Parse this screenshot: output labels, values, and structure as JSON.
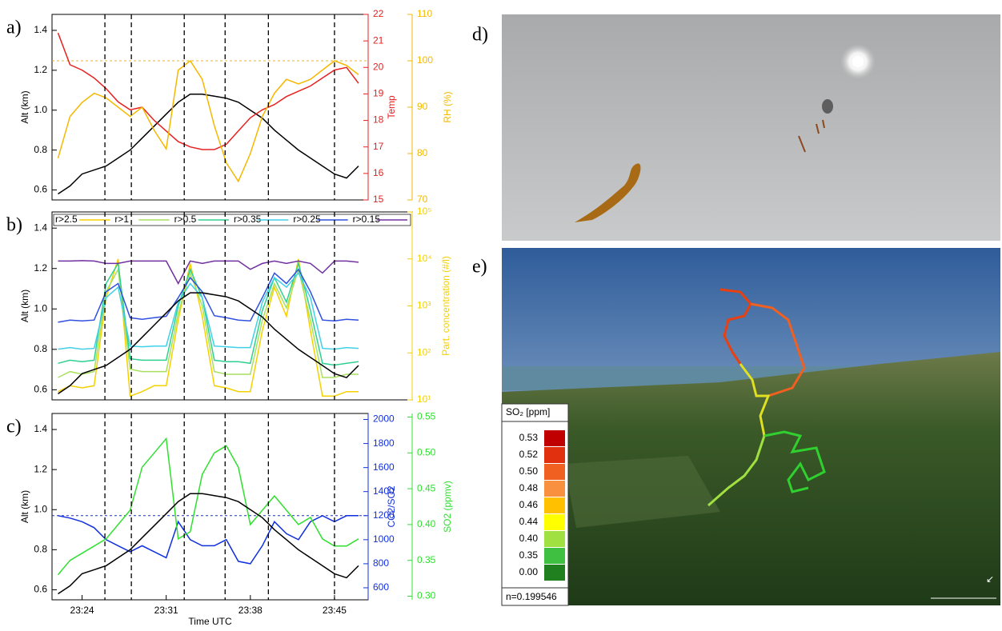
{
  "chart_data": [
    {
      "type": "line",
      "label": "a)",
      "ylabel": "Alt (km)",
      "y2label": "Temp",
      "y3label": "RH (%)",
      "xlim": [
        21.5,
        47.8
      ],
      "ylim": [
        0.55,
        1.48
      ],
      "yticks": [
        0.6,
        0.8,
        {
          "value": 1,
          "label": "1.0"
        },
        1.2,
        1.4
      ],
      "y2lim": [
        15,
        22
      ],
      "y2ticks": [
        15,
        16,
        17,
        18,
        19,
        20,
        21,
        22
      ],
      "y3lim": [
        70,
        110
      ],
      "y3ticks": [
        70,
        80,
        90,
        100,
        110
      ],
      "reference_line": {
        "axis": "y3",
        "value": 100
      },
      "x": [
        22,
        23,
        24,
        25,
        26,
        27,
        28,
        29,
        30,
        31,
        32,
        33,
        34,
        35,
        36,
        37,
        38,
        39,
        40,
        41,
        42,
        43,
        44,
        45,
        46,
        47
      ],
      "series": [
        {
          "axis": "y",
          "color": "#000000",
          "values": [
            0.58,
            0.62,
            0.68,
            0.7,
            0.72,
            0.76,
            0.8,
            0.86,
            0.92,
            0.98,
            1.04,
            1.08,
            1.08,
            1.07,
            1.06,
            1.04,
            1.0,
            0.96,
            0.9,
            0.85,
            0.8,
            0.76,
            0.72,
            0.68,
            0.66,
            0.72
          ]
        },
        {
          "axis": "y2",
          "color": "#e82020",
          "values": [
            21.3,
            20.1,
            19.9,
            19.6,
            19.2,
            18.7,
            18.4,
            18.5,
            18.0,
            17.6,
            17.2,
            17.0,
            16.9,
            16.9,
            17.1,
            17.6,
            18.1,
            18.4,
            18.6,
            18.9,
            19.1,
            19.3,
            19.6,
            19.9,
            20.0,
            19.4
          ]
        },
        {
          "axis": "y3",
          "color": "#f5b800",
          "values": [
            79,
            88,
            91,
            93,
            92,
            90,
            88,
            90,
            85,
            81,
            98,
            100,
            96,
            86,
            78,
            74,
            80,
            88,
            93,
            96,
            95,
            96,
            98,
            100,
            99,
            97
          ]
        }
      ]
    },
    {
      "type": "line",
      "label": "b)",
      "ylabel": "Alt (km)",
      "y2label": "Part. concentration (#/l)",
      "xlim": [
        21.5,
        47.8
      ],
      "ylim": [
        0.55,
        1.48
      ],
      "yticks": [
        0.6,
        0.8,
        {
          "value": 1,
          "label": "1.0"
        },
        1.2,
        1.4
      ],
      "y2lim": [
        10,
        100000
      ],
      "y2log": true,
      "y2ticks": [
        {
          "value": 10,
          "label": "10¹"
        },
        {
          "value": 100,
          "label": "10²"
        },
        {
          "value": 1000,
          "label": "10³"
        },
        {
          "value": 10000,
          "label": "10⁴"
        },
        {
          "value": 100000,
          "label": "10⁵"
        }
      ],
      "x": [
        22,
        23,
        24,
        25,
        26,
        27,
        28,
        29,
        30,
        31,
        32,
        33,
        34,
        35,
        36,
        37,
        38,
        39,
        40,
        41,
        42,
        43,
        44,
        45,
        46,
        47
      ],
      "series": [
        {
          "name": "r>2.5",
          "axis": "y2",
          "color": "#f5d000",
          "values": [
            15,
            20,
            18,
            20,
            1500,
            10000,
            12,
            15,
            20,
            20,
            500,
            8000,
            600,
            20,
            18,
            15,
            15,
            300,
            2500,
            600,
            10000,
            300,
            12,
            12,
            15,
            15
          ]
        },
        {
          "name": "r>1",
          "axis": "y2",
          "color": "#a8e060",
          "values": [
            30,
            40,
            35,
            40,
            2000,
            6000,
            45,
            40,
            40,
            40,
            700,
            5000,
            1000,
            40,
            35,
            35,
            35,
            500,
            3000,
            900,
            6000,
            500,
            30,
            30,
            35,
            35
          ]
        },
        {
          "name": "r>0.5",
          "axis": "y2",
          "color": "#30d090",
          "values": [
            60,
            70,
            65,
            70,
            3000,
            8000,
            75,
            70,
            70,
            70,
            1000,
            6000,
            1500,
            70,
            65,
            65,
            60,
            800,
            4000,
            1200,
            8000,
            800,
            60,
            55,
            60,
            65
          ]
        },
        {
          "name": "r>0.35",
          "axis": "y2",
          "color": "#40d0e8",
          "values": [
            120,
            130,
            120,
            125,
            1500,
            2500,
            140,
            135,
            140,
            140,
            1200,
            3000,
            1500,
            140,
            135,
            130,
            130,
            1200,
            4000,
            2500,
            5000,
            1500,
            125,
            120,
            130,
            125
          ]
        },
        {
          "name": "r>0.25",
          "axis": "y2",
          "color": "#3050e0",
          "values": [
            450,
            500,
            480,
            500,
            2000,
            3000,
            560,
            520,
            560,
            600,
            1500,
            4000,
            2000,
            620,
            560,
            500,
            480,
            1500,
            5000,
            3000,
            6000,
            2000,
            500,
            480,
            520,
            500
          ]
        },
        {
          "name": "r>0.15",
          "axis": "y2",
          "color": "#7030a0",
          "values": [
            9000,
            9000,
            9200,
            9000,
            8000,
            8000,
            9000,
            9000,
            9000,
            9000,
            3000,
            9000,
            8000,
            9000,
            9000,
            9000,
            6000,
            8000,
            9000,
            8000,
            9000,
            8000,
            5000,
            9000,
            9000,
            8500
          ]
        },
        {
          "axis": "y",
          "color": "#000000",
          "values": [
            0.58,
            0.62,
            0.68,
            0.7,
            0.72,
            0.76,
            0.8,
            0.86,
            0.92,
            0.98,
            1.04,
            1.08,
            1.08,
            1.07,
            1.06,
            1.04,
            1.0,
            0.96,
            0.9,
            0.85,
            0.8,
            0.76,
            0.72,
            0.68,
            0.66,
            0.72
          ]
        }
      ]
    },
    {
      "type": "line",
      "label": "c)",
      "ylabel": "Alt (km)",
      "y2label": "CO2/SO2",
      "y3label": "SO2 (ppmv)",
      "xlabel": "Time UTC",
      "xlim": [
        21.5,
        47.8
      ],
      "xticks": [
        {
          "value": 24,
          "label": "23:24"
        },
        {
          "value": 31,
          "label": "23:31"
        },
        {
          "value": 38,
          "label": "23:38"
        },
        {
          "value": 45,
          "label": "23:45"
        }
      ],
      "ylim": [
        0.55,
        1.48
      ],
      "yticks": [
        0.6,
        0.8,
        {
          "value": 1,
          "label": "1.0"
        },
        1.2,
        1.4
      ],
      "y2lim": [
        500,
        2050
      ],
      "y2ticks": [
        600,
        800,
        1000,
        1200,
        1400,
        1600,
        1800,
        2000
      ],
      "y3lim": [
        0.295,
        0.555
      ],
      "y3ticks": [
        {
          "value": 0.3,
          "label": "0.30"
        },
        0.35,
        {
          "value": 0.4,
          "label": "0.40"
        },
        0.45,
        {
          "value": 0.5,
          "label": "0.50"
        },
        0.55
      ],
      "reference_line": {
        "axis": "y2",
        "value": 1200
      },
      "x": [
        22,
        23,
        24,
        25,
        26,
        27,
        28,
        29,
        30,
        31,
        32,
        33,
        34,
        35,
        36,
        37,
        38,
        39,
        40,
        41,
        42,
        43,
        44,
        45,
        46,
        47
      ],
      "series": [
        {
          "axis": "y2",
          "color": "#1030e0",
          "values": [
            1200,
            1180,
            1150,
            1100,
            1000,
            950,
            900,
            950,
            900,
            850,
            1150,
            1000,
            950,
            950,
            1000,
            820,
            800,
            950,
            1150,
            1050,
            1000,
            1150,
            1200,
            1150,
            1200,
            1200
          ]
        },
        {
          "axis": "y3",
          "color": "#30e030",
          "values": [
            0.33,
            0.35,
            0.36,
            0.37,
            0.38,
            0.4,
            0.42,
            0.48,
            0.5,
            0.52,
            0.38,
            0.39,
            0.47,
            0.5,
            0.51,
            0.48,
            0.4,
            0.42,
            0.44,
            0.42,
            0.4,
            0.41,
            0.38,
            0.37,
            0.37,
            0.38
          ]
        },
        {
          "axis": "y",
          "color": "#000000",
          "values": [
            0.58,
            0.62,
            0.68,
            0.7,
            0.72,
            0.76,
            0.8,
            0.86,
            0.92,
            0.98,
            1.04,
            1.08,
            1.08,
            1.07,
            1.06,
            1.04,
            1.0,
            0.96,
            0.9,
            0.85,
            0.8,
            0.76,
            0.72,
            0.68,
            0.66,
            0.72
          ]
        }
      ]
    }
  ],
  "event_times": [
    25.9,
    28.1,
    32.5,
    35.9,
    39.5,
    45
  ],
  "photos": [
    {
      "label": "d)"
    },
    {
      "label": "e)",
      "legend": {
        "title": "SO₂ [ppm]",
        "note": "n=0.199546",
        "levels": [
          "0.53",
          "0.52",
          "0.50",
          "0.48",
          "0.46",
          "0.44",
          "0.40",
          "0.35",
          "0.00"
        ],
        "colors": [
          "#c00000",
          "#e03010",
          "#f06020",
          "#f89040",
          "#ffc000",
          "#ffff00",
          "#a0e040",
          "#40c040",
          "#208020"
        ]
      }
    }
  ]
}
